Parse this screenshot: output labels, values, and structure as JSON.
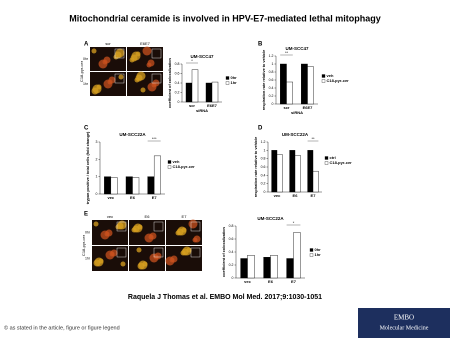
{
  "header": {
    "title": "Mitochondrial ceramide is involved in HPV-E7-mediated lethal mitophagy"
  },
  "panels": [
    {
      "label": "A",
      "columns": [
        "scr",
        "E6E7"
      ],
      "rows": [
        "0hr",
        "1hr"
      ],
      "row_title": "C18-pyr-cer"
    },
    {
      "label": "B"
    },
    {
      "label": "C"
    },
    {
      "label": "D"
    },
    {
      "label": "E",
      "columns": [
        "vec",
        "E6",
        "E7"
      ],
      "rows": [
        "0hr",
        "1hr"
      ],
      "row_title": "C18-pyr-cer"
    }
  ],
  "chart_data": [
    {
      "type": "bar",
      "title": "UM-SCC47",
      "ylabel": "coefficient of colocalization",
      "xlabel": "siRNA",
      "categories": [
        "scr",
        "E6E7"
      ],
      "ylim": [
        0,
        0.8
      ],
      "yticks": [
        0,
        0.2,
        0.4,
        0.6,
        0.8
      ],
      "annotation": "*",
      "series": [
        {
          "name": "0hr",
          "color": "#000000",
          "values": [
            0.4,
            0.4
          ]
        },
        {
          "name": "1hr",
          "color": "#ffffff",
          "values": [
            0.68,
            0.42
          ]
        }
      ]
    },
    {
      "type": "bar",
      "title": "UM-SCC47",
      "ylabel": "respiration rate relative to vehicle",
      "xlabel": "siRNA",
      "categories": [
        "scr",
        "E6E7"
      ],
      "ylim": [
        0,
        1.2
      ],
      "yticks": [
        0,
        0.2,
        0.4,
        0.6,
        0.8,
        1,
        1.2
      ],
      "annotation": "**",
      "series": [
        {
          "name": "veh",
          "color": "#000000",
          "values": [
            1,
            1
          ]
        },
        {
          "name": "C18-pyr-cer",
          "color": "#ffffff",
          "values": [
            0.55,
            0.93
          ]
        }
      ]
    },
    {
      "type": "bar",
      "title": "UM-SCC22A",
      "ylabel": "trypan positive / total cells (fold change)",
      "categories": [
        "vec",
        "E6",
        "E7"
      ],
      "ylim": [
        0,
        3
      ],
      "yticks": [
        0,
        1,
        2,
        3
      ],
      "annotation": "***",
      "series": [
        {
          "name": "veh",
          "color": "#000000",
          "values": [
            1,
            1,
            1
          ]
        },
        {
          "name": "C18-pyr-cer",
          "color": "#ffffff",
          "values": [
            0.95,
            0.95,
            2.2
          ]
        }
      ]
    },
    {
      "type": "bar",
      "title": "UM-SCC22A",
      "ylabel": "respiration rate relative to vehicle",
      "categories": [
        "vec",
        "E6",
        "E7"
      ],
      "ylim": [
        0,
        1.2
      ],
      "yticks": [
        0,
        0.2,
        0.4,
        0.6,
        0.8,
        1,
        1.2
      ],
      "annotation": "**",
      "series": [
        {
          "name": "ctrl",
          "color": "#000000",
          "values": [
            1,
            1,
            1
          ]
        },
        {
          "name": "C18-pyr-cer",
          "color": "#ffffff",
          "values": [
            0.9,
            0.88,
            0.5
          ]
        }
      ]
    },
    {
      "type": "bar",
      "title": "UM-SCC22A",
      "ylabel": "coefficient of colocalization",
      "categories": [
        "vec",
        "E6",
        "E7"
      ],
      "ylim": [
        0,
        0.8
      ],
      "yticks": [
        0,
        0.2,
        0.4,
        0.6,
        0.8
      ],
      "annotation": "*",
      "series": [
        {
          "name": "0hr",
          "color": "#000000",
          "values": [
            0.3,
            0.32,
            0.3
          ]
        },
        {
          "name": "1hr",
          "color": "#ffffff",
          "values": [
            0.35,
            0.35,
            0.7
          ]
        }
      ]
    }
  ],
  "citation": "Raquela J Thomas et al. EMBO Mol Med. 2017;9:1030-1051",
  "footer": {
    "copyright": "© as stated in the article, figure or figure legend",
    "logo_top": "EMBO",
    "logo_bottom": "Molecular Medicine"
  }
}
